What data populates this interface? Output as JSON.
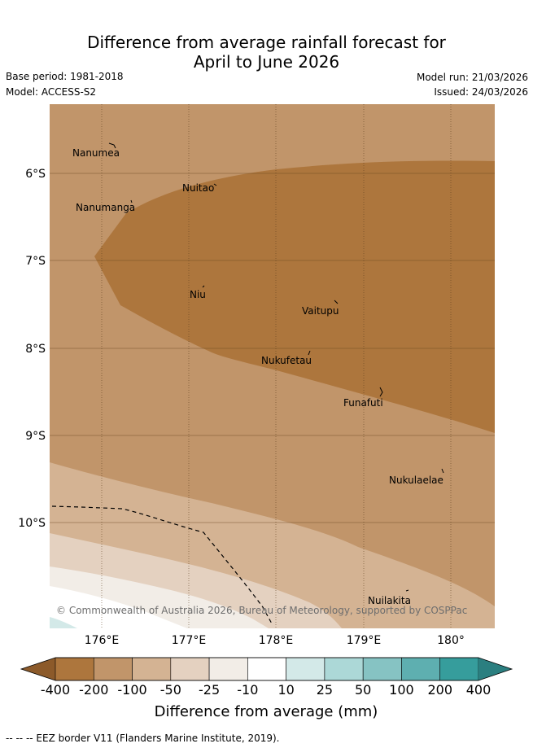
{
  "title": {
    "line1": "Difference from average rainfall forecast for",
    "line2": "April to June 2026"
  },
  "meta": {
    "base_period": "Base period: 1981-2018",
    "model": "Model: ACCESS-S2",
    "model_run": "Model run: 21/03/2026",
    "issued": "Issued: 24/03/2026"
  },
  "map": {
    "lat_labels": [
      "6°S",
      "7°S",
      "8°S",
      "9°S",
      "10°S"
    ],
    "lon_labels": [
      "176°E",
      "177°E",
      "178°E",
      "179°E",
      "180°"
    ],
    "places": [
      "Nanumea",
      "Nuitao",
      "Nanumanga",
      "Niu",
      "Vaitupu",
      "Nukufetau",
      "Funafuti",
      "Nukulaelae",
      "Nuilakita"
    ],
    "copyright": "© Commonwealth of Australia 2026, Bureau of Meteorology, supported by COSPPac"
  },
  "colorbar": {
    "labels": [
      "-400",
      "-200",
      "-100",
      "-50",
      "-25",
      "-10",
      "10",
      "25",
      "50",
      "100",
      "200",
      "400"
    ],
    "colors": [
      "#8c5a2a",
      "#ad763d",
      "#c1956a",
      "#d4b393",
      "#e4d1c0",
      "#f2ede7",
      "#ffffff",
      "#d3e9e8",
      "#acd8d7",
      "#86c3c3",
      "#5eafb0",
      "#369d9c",
      "#2b7f80"
    ],
    "title": "Difference from average (mm)"
  },
  "footer": "--  --  -- EEZ border V11 (Flanders Marine Institute, 2019)."
}
